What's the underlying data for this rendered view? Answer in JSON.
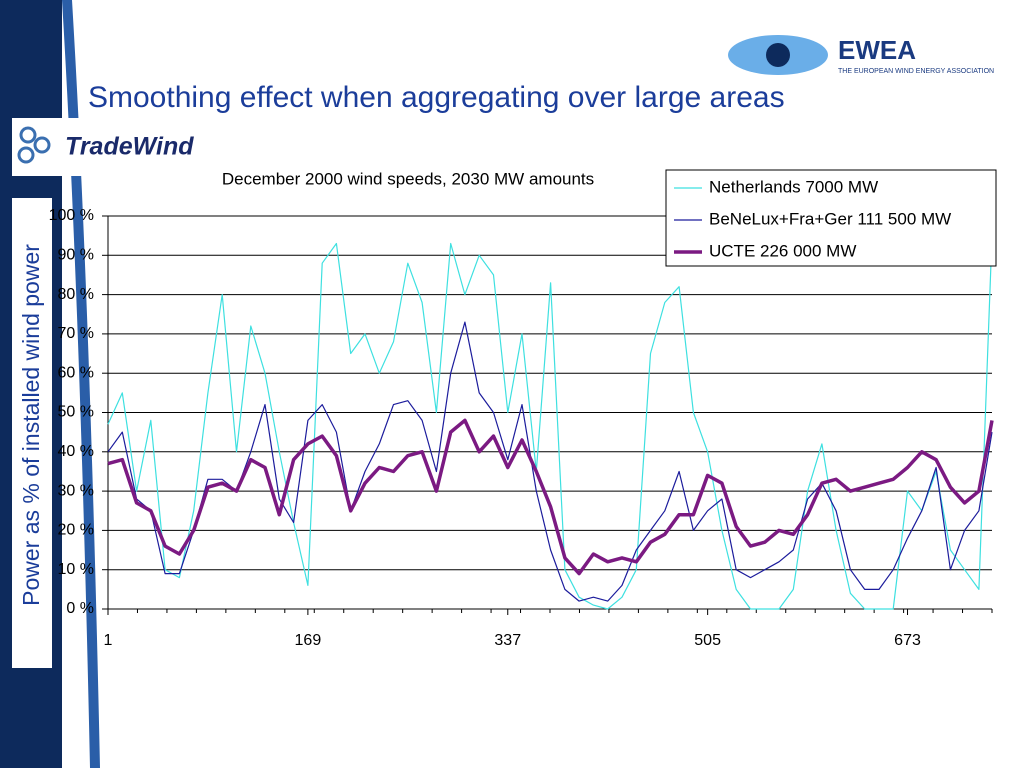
{
  "slide_title": "Smoothing effect when aggregating over large areas",
  "logos": {
    "left": "TradeWind",
    "right": "EWEA",
    "right_sub": "THE EUROPEAN WIND ENERGY ASSOCIATION"
  },
  "chart_data": {
    "type": "line",
    "title": "December 2000 wind speeds, 2030 MW amounts",
    "y_label": "Power as % of installed wind power",
    "x": [
      1,
      13,
      25,
      37,
      49,
      61,
      73,
      85,
      97,
      109,
      121,
      133,
      145,
      157,
      169,
      181,
      193,
      205,
      217,
      229,
      241,
      253,
      265,
      277,
      289,
      301,
      313,
      325,
      337,
      349,
      361,
      373,
      385,
      397,
      409,
      421,
      433,
      445,
      457,
      469,
      481,
      493,
      505,
      517,
      529,
      541,
      553,
      565,
      577,
      589,
      601,
      613,
      625,
      637,
      649,
      661,
      673,
      685,
      697,
      709,
      721,
      733,
      744
    ],
    "xlim": [
      1,
      744
    ],
    "xticks": [
      1,
      169,
      337,
      505,
      673
    ],
    "ylim": [
      0,
      100
    ],
    "yticks": [
      {
        "value": 0,
        "label": "0 %"
      },
      {
        "value": 10,
        "label": "10 %"
      },
      {
        "value": 20,
        "label": "20 %"
      },
      {
        "value": 30,
        "label": "30 %"
      },
      {
        "value": 40,
        "label": "40 %"
      },
      {
        "value": 50,
        "label": "50 %"
      },
      {
        "value": 60,
        "label": "60 %"
      },
      {
        "value": 70,
        "label": "70 %"
      },
      {
        "value": 80,
        "label": "80 %"
      },
      {
        "value": 90,
        "label": "90 %"
      },
      {
        "value": 100,
        "label": "100 %"
      }
    ],
    "grid": true,
    "legend": "top-right",
    "series": [
      {
        "name": "Netherlands 7000 MW",
        "color": "#3ee0e0",
        "width": 1.2,
        "values": [
          47,
          55,
          30,
          48,
          10,
          8,
          25,
          55,
          80,
          40,
          72,
          60,
          40,
          22,
          6,
          88,
          93,
          65,
          70,
          60,
          68,
          88,
          78,
          50,
          93,
          80,
          90,
          85,
          50,
          70,
          35,
          83,
          10,
          3,
          1,
          0,
          3,
          10,
          65,
          78,
          82,
          50,
          40,
          20,
          5,
          0,
          0,
          0,
          5,
          30,
          42,
          20,
          4,
          0,
          0,
          0,
          30,
          25,
          35,
          15,
          10,
          5,
          95
        ]
      },
      {
        "name": "BeNeLux+Fra+Ger 111 500 MW",
        "color": "#1c1c9c",
        "width": 1.2,
        "values": [
          40,
          45,
          28,
          25,
          9,
          9,
          20,
          33,
          33,
          30,
          40,
          52,
          28,
          22,
          48,
          52,
          45,
          25,
          35,
          42,
          52,
          53,
          48,
          35,
          60,
          73,
          55,
          50,
          38,
          52,
          30,
          15,
          5,
          2,
          3,
          2,
          6,
          15,
          20,
          25,
          35,
          20,
          25,
          28,
          10,
          8,
          10,
          12,
          15,
          28,
          32,
          25,
          10,
          5,
          5,
          10,
          18,
          25,
          36,
          10,
          20,
          25,
          45
        ]
      },
      {
        "name": "UCTE 226 000 MW",
        "color": "#7b1a82",
        "width": 3.5,
        "values": [
          37,
          38,
          27,
          25,
          16,
          14,
          20,
          31,
          32,
          30,
          38,
          36,
          24,
          38,
          42,
          44,
          39,
          25,
          32,
          36,
          35,
          39,
          40,
          30,
          45,
          48,
          40,
          44,
          36,
          43,
          35,
          26,
          13,
          9,
          14,
          12,
          13,
          12,
          17,
          19,
          24,
          24,
          34,
          32,
          21,
          16,
          17,
          20,
          19,
          24,
          32,
          33,
          30,
          31,
          32,
          33,
          36,
          40,
          38,
          31,
          27,
          30,
          48
        ]
      }
    ]
  }
}
